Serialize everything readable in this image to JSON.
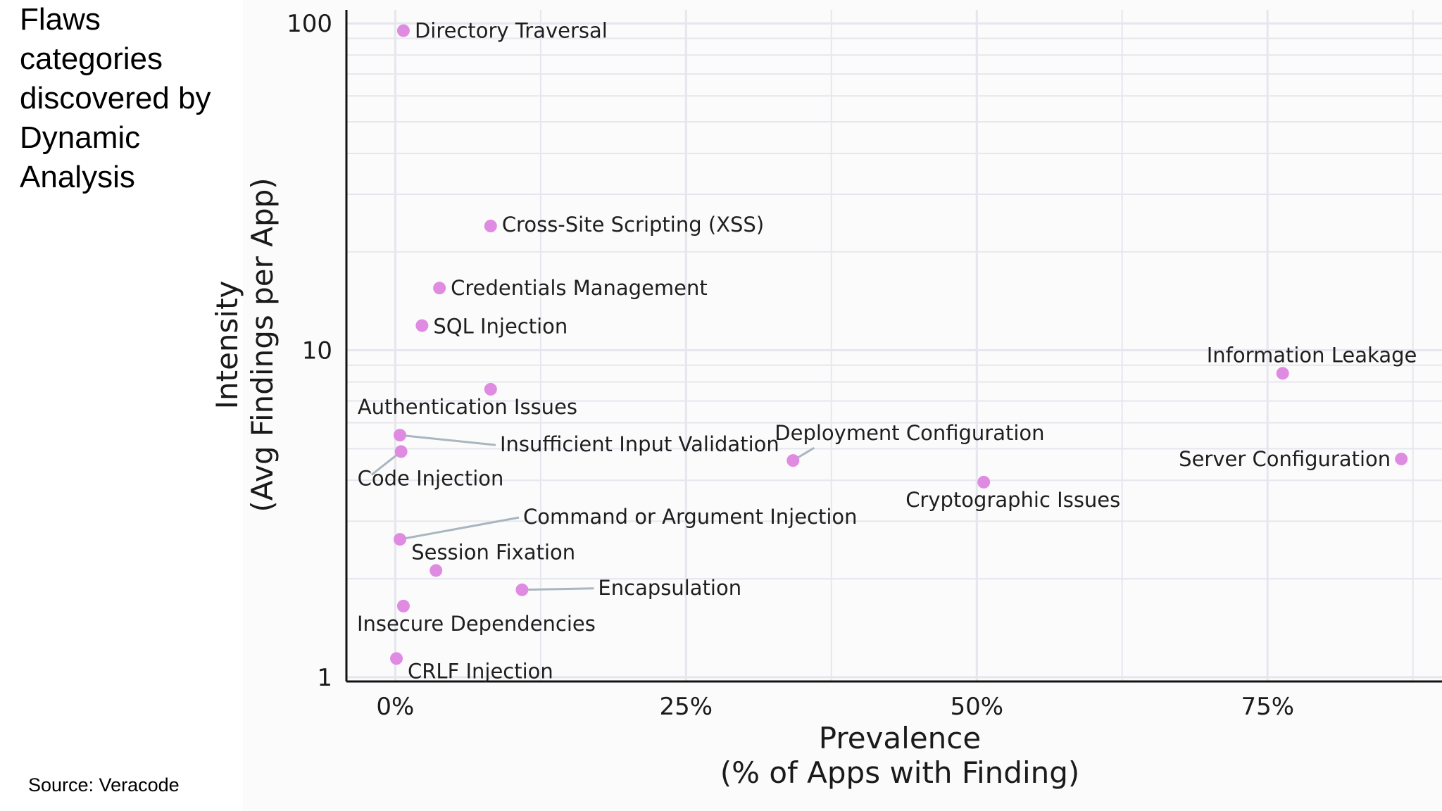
{
  "slide": {
    "title": "Flaws categories discovered by Dynamic Analysis",
    "source": "Source: Veracode"
  },
  "colors": {
    "point": "#e08be2",
    "leader": "#a9b6bf",
    "grid": "#e6e6ee",
    "axis": "#111111"
  },
  "chart_data": {
    "type": "scatter",
    "xlabel_line1": "Prevalence",
    "xlabel_line2": "(% of Apps with Finding)",
    "ylabel_line1": "Intensity",
    "ylabel_line2": "(Avg Findings per App)",
    "x_ticks": [
      "0%",
      "25%",
      "50%",
      "75%"
    ],
    "x_tick_values": [
      0,
      25,
      50,
      75
    ],
    "y_ticks": [
      "1",
      "10",
      "100"
    ],
    "y_tick_values": [
      1,
      10,
      100
    ],
    "y_scale": "log",
    "xlim": [
      -4.2,
      90
    ],
    "ylim": [
      0.97,
      110
    ],
    "grid": true,
    "points": [
      {
        "label": "Directory Traversal",
        "x": 0.7,
        "y": 95
      },
      {
        "label": "Cross-Site Scripting (XSS)",
        "x": 8.2,
        "y": 24
      },
      {
        "label": "Credentials Management",
        "x": 3.8,
        "y": 15.5
      },
      {
        "label": "SQL Injection",
        "x": 2.3,
        "y": 11.9
      },
      {
        "label": "Authentication Issues",
        "x": 8.2,
        "y": 7.6
      },
      {
        "label": "Information Leakage",
        "x": 76.3,
        "y": 8.5
      },
      {
        "label": "Insufficient Input Validation",
        "x": 0.4,
        "y": 5.5
      },
      {
        "label": "Code Injection",
        "x": 0.5,
        "y": 4.9
      },
      {
        "label": "Deployment Configuration",
        "x": 34.2,
        "y": 4.6
      },
      {
        "label": "Server Configuration",
        "x": 86.5,
        "y": 4.65
      },
      {
        "label": "Cryptographic Issues",
        "x": 50.6,
        "y": 3.95
      },
      {
        "label": "Command or Argument Injection",
        "x": 0.4,
        "y": 2.64
      },
      {
        "label": "Session Fixation",
        "x": 3.5,
        "y": 2.12
      },
      {
        "label": "Encapsulation",
        "x": 10.9,
        "y": 1.85
      },
      {
        "label": "Insecure Dependencies",
        "x": 0.7,
        "y": 1.65
      },
      {
        "label": "CRLF Injection",
        "x": 0.1,
        "y": 1.14
      }
    ]
  }
}
